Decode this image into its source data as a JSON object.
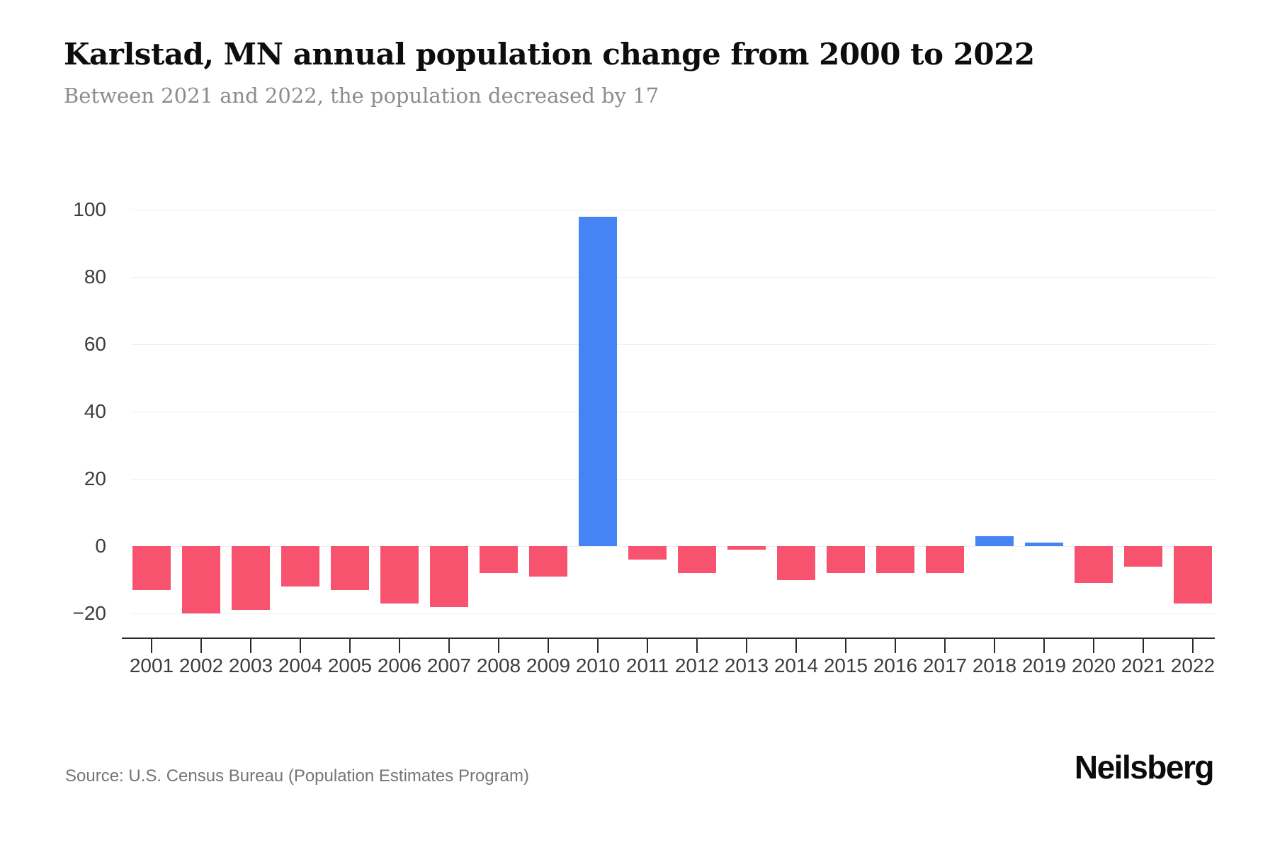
{
  "title": "Karlstad, MN annual population change from 2000 to 2022",
  "subtitle": "Between 2021 and 2022, the population decreased by 17",
  "source": "Source: U.S. Census Bureau (Population Estimates Program)",
  "brand": "Neilsberg",
  "colors": {
    "positive_bar": "#4584F4",
    "negative_bar": "#F8536E",
    "gridline": "#EFEFEF",
    "axis": "#2B2B2B",
    "title_text": "#0D0D0D",
    "subtitle_text": "#8C8C8C",
    "tick_label_text": "#3D3D3D",
    "source_text": "#757575"
  },
  "chart_data": {
    "type": "bar",
    "title": "Karlstad, MN annual population change from 2000 to 2022",
    "xlabel": "",
    "ylabel": "",
    "categories": [
      "2001",
      "2002",
      "2003",
      "2004",
      "2005",
      "2006",
      "2007",
      "2008",
      "2009",
      "2010",
      "2011",
      "2012",
      "2013",
      "2014",
      "2015",
      "2016",
      "2017",
      "2018",
      "2019",
      "2020",
      "2021",
      "2022"
    ],
    "values": [
      -13,
      -20,
      -19,
      -12,
      -13,
      -17,
      -18,
      -8,
      -9,
      98,
      -4,
      -8,
      -1,
      -10,
      -8,
      -8,
      -8,
      3,
      1,
      -11,
      -6,
      -17
    ],
    "yticks": [
      100,
      80,
      60,
      40,
      20,
      0,
      -20
    ],
    "ylim": [
      -27,
      110
    ],
    "grid": true,
    "legend": false,
    "bar_color_rule": "blue when positive, pink-red when negative"
  }
}
